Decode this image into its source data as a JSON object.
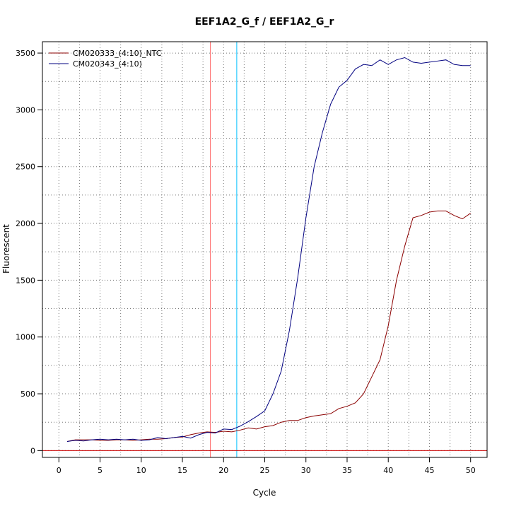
{
  "chart_data": {
    "type": "line",
    "title": "EEF1A2_G_f / EEF1A2_G_r",
    "xlabel": "Cycle",
    "ylabel": "Fluorescent",
    "xlim": [
      -2,
      52
    ],
    "ylim": [
      -60,
      3600
    ],
    "x_ticks": [
      0,
      5,
      10,
      15,
      20,
      25,
      30,
      35,
      40,
      45,
      50
    ],
    "y_ticks": [
      0,
      500,
      1000,
      1500,
      2000,
      2500,
      3000,
      3500
    ],
    "x_ticks_labels": [
      "0",
      "5",
      "10",
      "15",
      "20",
      "25",
      "30",
      "35",
      "40",
      "45",
      "50"
    ],
    "y_ticks_labels": [
      "0",
      "500",
      "1000",
      "1500",
      "2000",
      "2500",
      "3000",
      "3500"
    ],
    "grid": true,
    "legend_position": "top-left",
    "threshold_line": {
      "y": 0,
      "color": "#cc0000"
    },
    "vertical_lines": [
      {
        "x": 18.4,
        "color": "#ff6666"
      },
      {
        "x": 21.6,
        "color": "#00bfff"
      }
    ],
    "series": [
      {
        "name": "CM020333_(4:10)_NTC",
        "color": "#8b0000",
        "x": [
          1,
          2,
          3,
          4,
          5,
          6,
          7,
          8,
          9,
          10,
          11,
          12,
          13,
          14,
          15,
          16,
          17,
          18,
          19,
          20,
          21,
          22,
          23,
          24,
          25,
          26,
          27,
          28,
          29,
          30,
          31,
          32,
          33,
          34,
          35,
          36,
          37,
          38,
          39,
          40,
          41,
          42,
          43,
          44,
          45,
          46,
          47,
          48,
          49,
          50
        ],
        "y": [
          80,
          95,
          95,
          95,
          90,
          90,
          95,
          95,
          90,
          95,
          100,
          100,
          105,
          115,
          120,
          140,
          155,
          165,
          160,
          170,
          165,
          180,
          200,
          190,
          210,
          220,
          250,
          265,
          265,
          290,
          305,
          315,
          325,
          370,
          390,
          420,
          500,
          650,
          800,
          1100,
          1500,
          1800,
          2050,
          2070,
          2100,
          2110,
          2110,
          2070,
          2040,
          2090
        ]
      },
      {
        "name": "CM020343_(4:10)",
        "color": "#000080",
        "x": [
          1,
          2,
          3,
          4,
          5,
          6,
          7,
          8,
          9,
          10,
          11,
          12,
          13,
          14,
          15,
          16,
          17,
          18,
          19,
          20,
          21,
          22,
          23,
          24,
          25,
          26,
          27,
          28,
          29,
          30,
          31,
          32,
          33,
          34,
          35,
          36,
          37,
          38,
          39,
          40,
          41,
          42,
          43,
          44,
          45,
          46,
          47,
          48,
          49,
          50
        ],
        "y": [
          80,
          90,
          85,
          95,
          100,
          95,
          100,
          95,
          100,
          90,
          95,
          115,
          105,
          115,
          125,
          110,
          140,
          160,
          155,
          190,
          185,
          215,
          255,
          300,
          350,
          500,
          700,
          1060,
          1520,
          2050,
          2500,
          2800,
          3050,
          3200,
          3260,
          3360,
          3400,
          3390,
          3440,
          3400,
          3440,
          3460,
          3420,
          3410,
          3420,
          3430,
          3440,
          3400,
          3390,
          3390
        ]
      }
    ]
  }
}
